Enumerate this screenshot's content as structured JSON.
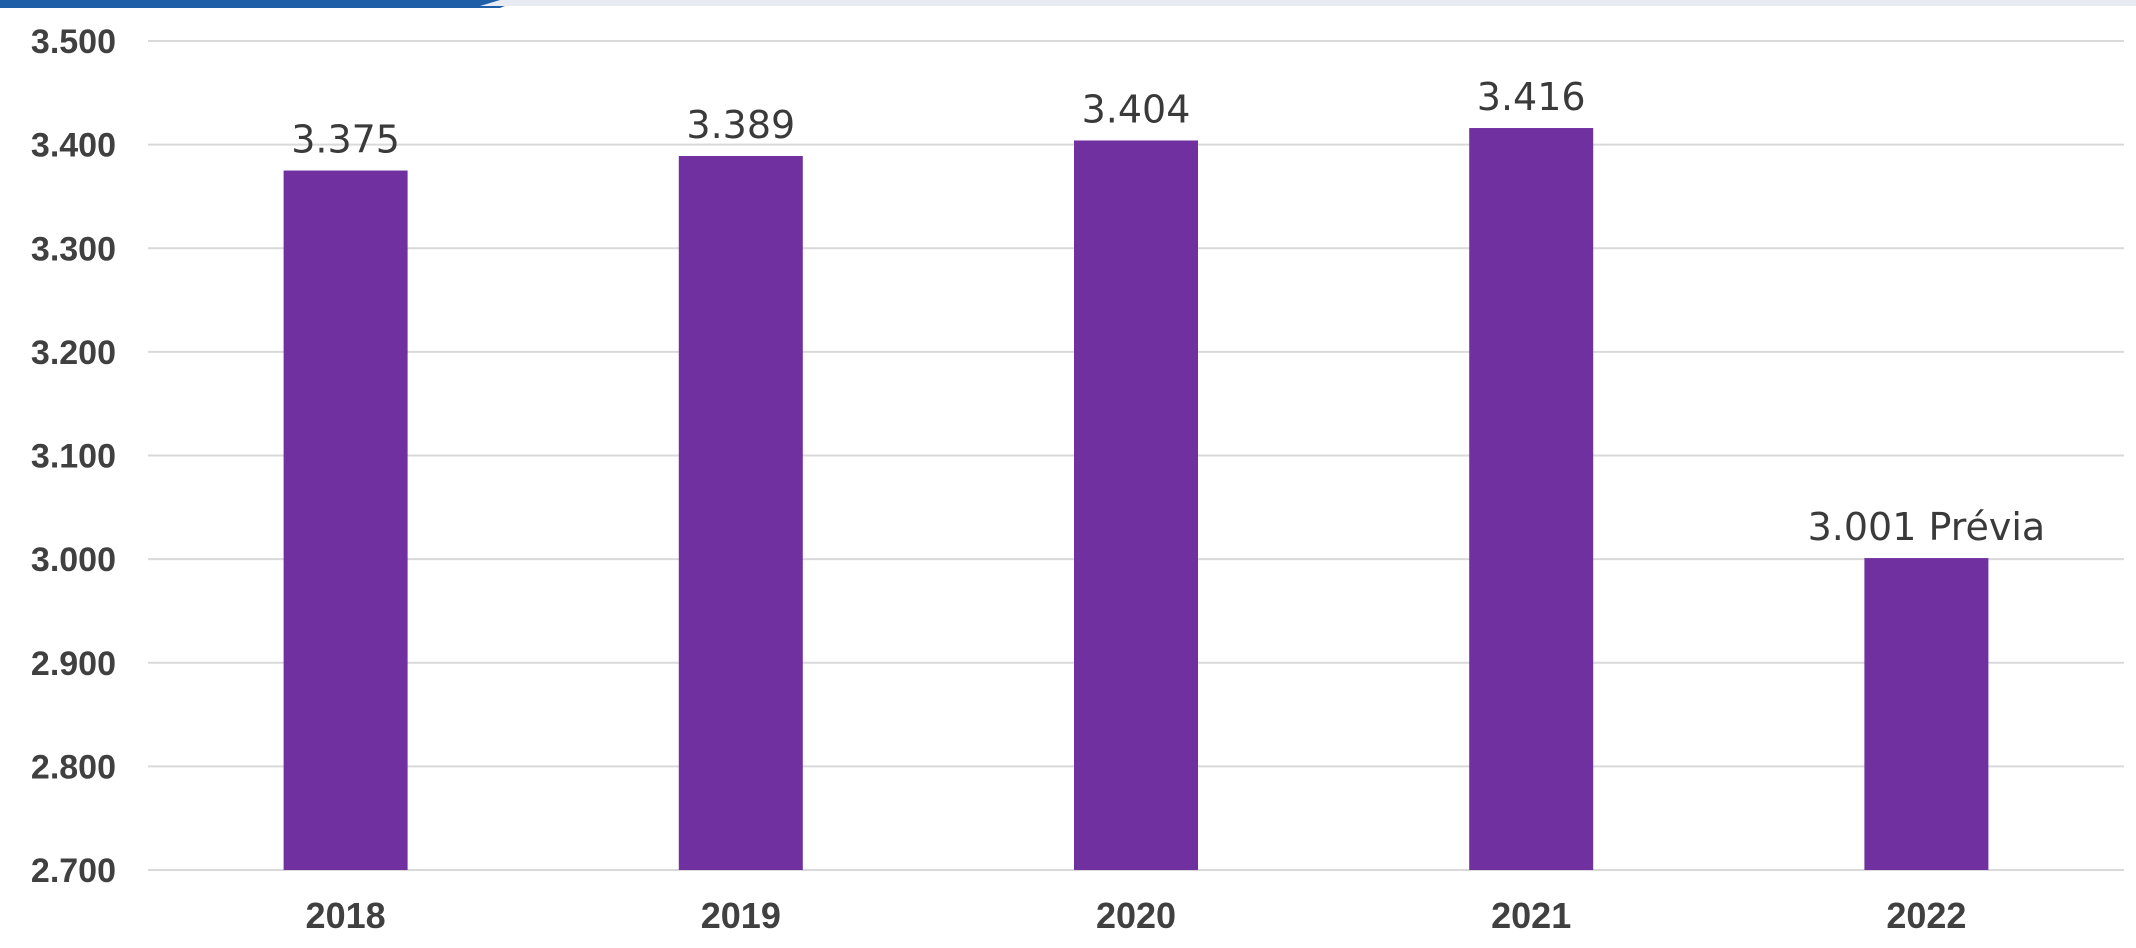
{
  "chart_data": {
    "type": "bar",
    "categories": [
      "2018",
      "2019",
      "2020",
      "2021",
      "2022"
    ],
    "values": [
      3375,
      3389,
      3404,
      3416,
      3001
    ],
    "data_labels": [
      "3.375",
      "3.389",
      "3.404",
      "3.416",
      "3.001 Prévia"
    ],
    "ylim": [
      2700,
      3500
    ],
    "yticks": [
      2700,
      2800,
      2900,
      3000,
      3100,
      3200,
      3300,
      3400,
      3500
    ],
    "ytick_labels": [
      "2.700",
      "2.800",
      "2.900",
      "3.000",
      "3.100",
      "3.200",
      "3.300",
      "3.400",
      "3.500"
    ],
    "title": "",
    "xlabel": "",
    "ylabel": "",
    "grid": true,
    "legend": "none",
    "colors": {
      "bar": "#7030a0",
      "grid": "#d9d9d9",
      "text": "#404040",
      "accent_top_left": "#1f5fa8"
    }
  }
}
